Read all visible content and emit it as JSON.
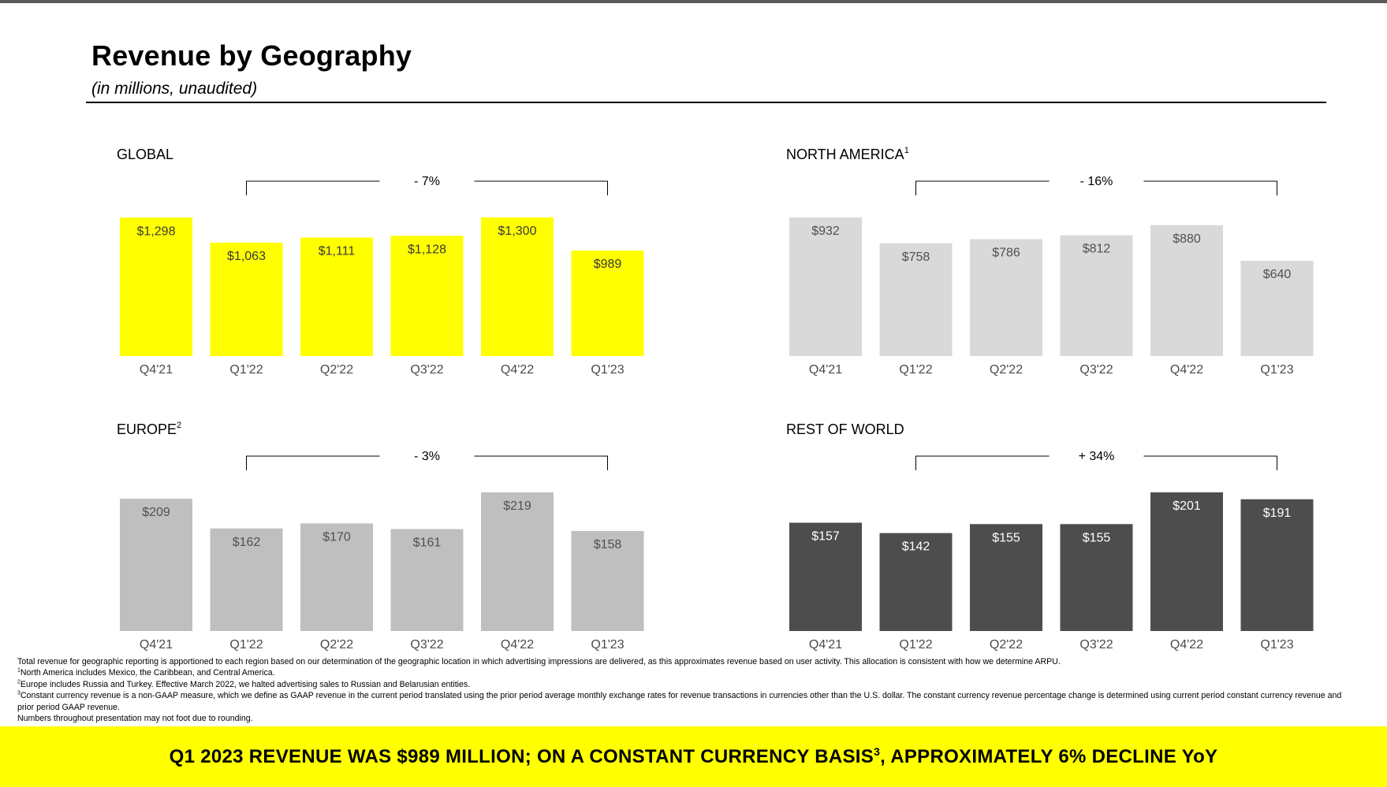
{
  "header": {
    "title": "Revenue by Geography",
    "subtitle": "(in millions, unaudited)"
  },
  "chart_data": [
    {
      "id": "global",
      "type": "bar",
      "title": "GLOBAL",
      "title_sup": "",
      "categories": [
        "Q4'21",
        "Q1'22",
        "Q2'22",
        "Q3'22",
        "Q4'22",
        "Q1'23"
      ],
      "values": [
        1298,
        1063,
        1111,
        1128,
        1300,
        989
      ],
      "value_labels": [
        "$1,298",
        "$1,063",
        "$1,111",
        "$1,128",
        "$1,300",
        "$989"
      ],
      "change_label": "- 7%",
      "change_from": "Q1'22",
      "change_to": "Q1'23",
      "ylim": [
        0,
        1300
      ],
      "color": "#ffff00",
      "label_color": "#3a3a3a",
      "xlabel": "",
      "ylabel": ""
    },
    {
      "id": "north-america",
      "type": "bar",
      "title": "NORTH AMERICA",
      "title_sup": "1",
      "categories": [
        "Q4'21",
        "Q1'22",
        "Q2'22",
        "Q3'22",
        "Q4'22",
        "Q1'23"
      ],
      "values": [
        932,
        758,
        786,
        812,
        880,
        640
      ],
      "value_labels": [
        "$932",
        "$758",
        "$786",
        "$812",
        "$880",
        "$640"
      ],
      "change_label": "- 16%",
      "change_from": "Q1'22",
      "change_to": "Q1'23",
      "ylim": [
        0,
        932
      ],
      "color": "#d9d9d9",
      "label_color": "#505050",
      "xlabel": "",
      "ylabel": ""
    },
    {
      "id": "europe",
      "type": "bar",
      "title": "EUROPE",
      "title_sup": "2",
      "categories": [
        "Q4'21",
        "Q1'22",
        "Q2'22",
        "Q3'22",
        "Q4'22",
        "Q1'23"
      ],
      "values": [
        209,
        162,
        170,
        161,
        219,
        158
      ],
      "value_labels": [
        "$209",
        "$162",
        "$170",
        "$161",
        "$219",
        "$158"
      ],
      "change_label": "- 3%",
      "change_from": "Q1'22",
      "change_to": "Q1'23",
      "ylim": [
        0,
        219
      ],
      "color": "#bfbfbf",
      "label_color": "#505050",
      "xlabel": "",
      "ylabel": ""
    },
    {
      "id": "rest-of-world",
      "type": "bar",
      "title": "REST OF WORLD",
      "title_sup": "",
      "categories": [
        "Q4'21",
        "Q1'22",
        "Q2'22",
        "Q3'22",
        "Q4'22",
        "Q1'23"
      ],
      "values": [
        157,
        142,
        155,
        155,
        201,
        191
      ],
      "value_labels": [
        "$157",
        "$142",
        "$155",
        "$155",
        "$201",
        "$191"
      ],
      "change_label": "+ 34%",
      "change_from": "Q1'22",
      "change_to": "Q1'23",
      "ylim": [
        0,
        201
      ],
      "color": "#4d4d4d",
      "label_color": "#ffffff",
      "xlabel": "",
      "ylabel": ""
    }
  ],
  "footnotes": {
    "general": "Total revenue for geographic reporting is apportioned to each region based on our determination of the geographic location in which advertising impressions are delivered, as this approximates revenue based on user activity. This allocation is consistent with how we determine ARPU.",
    "note1_mark": "1",
    "note1": "North America includes Mexico, the Caribbean, and Central America.",
    "note2_mark": "2",
    "note2": "Europe includes Russia and Turkey. Effective March 2022, we halted advertising sales to Russian and Belarusian entities.",
    "note3_mark": "3",
    "note3": "Constant currency revenue is a non-GAAP measure, which we define as GAAP revenue in the current period translated using the prior period average monthly exchange rates for revenue transactions in currencies other than the U.S. dollar. The constant currency revenue percentage change is determined using current period constant currency revenue and prior period GAAP revenue.",
    "rounding": "Numbers throughout presentation may not foot due to rounding."
  },
  "banner": {
    "text_before": "Q1 2023 REVENUE WAS $989 MILLION; ON A CONSTANT CURRENCY BASIS",
    "sup": "3",
    "text_after": ", APPROXIMATELY 6% DECLINE YoY",
    "color": "#ffff00"
  }
}
